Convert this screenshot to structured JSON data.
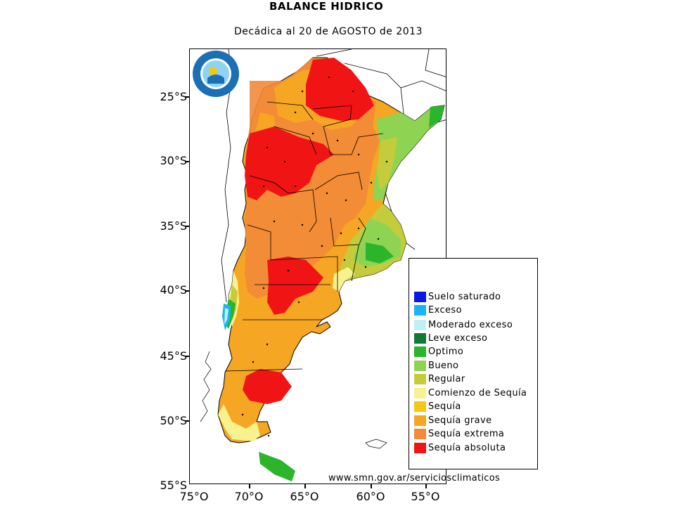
{
  "title": "BALANCE HIDRICO",
  "subtitle": "Decádica al 20 de AGOSTO de 2013",
  "source_url": "www.smn.gov.ar/serviciosclimaticos",
  "logo": {
    "icon": "smn-argentina-seal",
    "colors": [
      "#1b6fb5",
      "#ffffff",
      "#8fd3f4"
    ]
  },
  "latitude_labels": [
    "25°S",
    "30°S",
    "35°S",
    "40°S",
    "45°S",
    "50°S",
    "55°S"
  ],
  "longitude_labels": [
    "75°O",
    "70°O",
    "65°O",
    "60°O",
    "55°O"
  ],
  "legend": {
    "items": [
      {
        "label": "Suelo saturado",
        "color": "#0a18e6"
      },
      {
        "label": "Exceso",
        "color": "#19b4f5"
      },
      {
        "label": "Moderado exceso",
        "color": "#bff0f8"
      },
      {
        "label": "Leve exceso",
        "color": "#117a32"
      },
      {
        "label": "Optimo",
        "color": "#2bb52b"
      },
      {
        "label": "Bueno",
        "color": "#8ed452"
      },
      {
        "label": "Regular",
        "color": "#c5cc3c"
      },
      {
        "label": "Comienzo de Sequía",
        "color": "#f8f28e"
      },
      {
        "label": "Sequía",
        "color": "#f5c613"
      },
      {
        "label": "Sequía grave",
        "color": "#f5a623"
      },
      {
        "label": "Sequía extrema",
        "color": "#f28a38"
      },
      {
        "label": "Sequía absoluta",
        "color": "#f01414"
      }
    ]
  }
}
